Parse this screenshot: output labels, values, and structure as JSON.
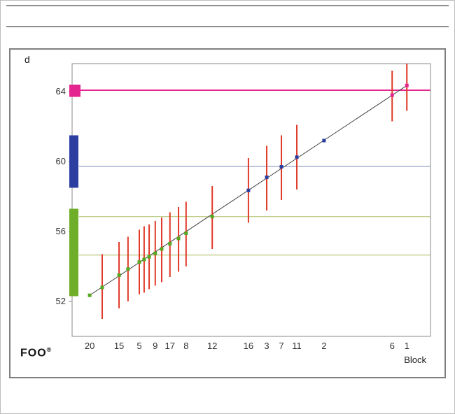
{
  "branding": {
    "logo": "FOO",
    "trademark": "®"
  },
  "chart_data": {
    "type": "scatter",
    "title": "",
    "ylabel": "d",
    "xlabel": "Block",
    "ylim": [
      50.0,
      65.6
    ],
    "yticks": [
      52,
      56,
      60,
      64
    ],
    "grid": false,
    "legend": "none",
    "colors": {
      "axis": "#8a8a8a",
      "text": "#333333",
      "error": "#e03a28",
      "trend": "#404040",
      "green": "#55a820",
      "blue": "#2c3e9f",
      "pink": "#e5258f",
      "green_line": "#a9bd62",
      "blue_line": "#8089c0",
      "pink_line": "#e5258f"
    },
    "reference_lines": [
      {
        "value": 64.08,
        "color": "#e5258f",
        "width": 2
      },
      {
        "value": 59.72,
        "color": "#8089c0",
        "width": 1
      },
      {
        "value": 56.85,
        "color": "#a9bd62",
        "width": 1
      },
      {
        "value": 54.65,
        "color": "#a9bd62",
        "width": 1
      }
    ],
    "axis_bars": [
      {
        "from": 63.7,
        "to": 64.4,
        "color": "#e5258f",
        "w": 16
      },
      {
        "from": 58.5,
        "to": 61.5,
        "color": "#2c3e9f",
        "w": 13
      },
      {
        "from": 52.3,
        "to": 57.3,
        "color": "#6fae28",
        "w": 13
      }
    ],
    "points": [
      {
        "x": 4.9,
        "value": 52.35,
        "lo": null,
        "hi": null,
        "group": "green",
        "label": "20"
      },
      {
        "x": 8.4,
        "value": 52.8,
        "lo": 51.0,
        "hi": 54.7,
        "group": "green",
        "label": null
      },
      {
        "x": 13.1,
        "value": 53.5,
        "lo": 51.6,
        "hi": 55.4,
        "group": "green",
        "label": "15"
      },
      {
        "x": 15.6,
        "value": 53.85,
        "lo": 52.0,
        "hi": 55.7,
        "group": "green",
        "label": null
      },
      {
        "x": 18.75,
        "value": 54.25,
        "lo": 52.4,
        "hi": 56.1,
        "group": "green",
        "label": "5"
      },
      {
        "x": 20.1,
        "value": 54.4,
        "lo": 52.5,
        "hi": 56.3,
        "group": "green",
        "label": null
      },
      {
        "x": 21.5,
        "value": 54.55,
        "lo": 52.7,
        "hi": 56.4,
        "group": "green",
        "label": null
      },
      {
        "x": 23.2,
        "value": 54.75,
        "lo": 52.9,
        "hi": 56.6,
        "group": "green",
        "label": "9"
      },
      {
        "x": 25.0,
        "value": 55.0,
        "lo": 53.1,
        "hi": 56.8,
        "group": "green",
        "label": null
      },
      {
        "x": 27.3,
        "value": 55.3,
        "lo": 53.4,
        "hi": 57.1,
        "group": "green",
        "label": "17"
      },
      {
        "x": 29.7,
        "value": 55.6,
        "lo": 53.7,
        "hi": 57.4,
        "group": "green",
        "label": null
      },
      {
        "x": 31.8,
        "value": 55.9,
        "lo": 54.0,
        "hi": 57.7,
        "group": "green",
        "label": "8"
      },
      {
        "x": 39.1,
        "value": 56.85,
        "lo": 55.0,
        "hi": 58.6,
        "group": "green",
        "label": "12"
      },
      {
        "x": 49.2,
        "value": 58.35,
        "lo": 56.5,
        "hi": 60.2,
        "group": "blue",
        "label": "16"
      },
      {
        "x": 54.3,
        "value": 59.1,
        "lo": 57.2,
        "hi": 60.9,
        "group": "blue",
        "label": "3"
      },
      {
        "x": 58.4,
        "value": 59.7,
        "lo": 57.8,
        "hi": 61.5,
        "group": "blue",
        "label": "7"
      },
      {
        "x": 62.7,
        "value": 60.25,
        "lo": 58.4,
        "hi": 62.1,
        "group": "blue",
        "label": "11"
      },
      {
        "x": 70.3,
        "value": 61.2,
        "lo": null,
        "hi": null,
        "group": "blue",
        "label": "2"
      },
      {
        "x": 89.3,
        "value": 63.8,
        "lo": 62.3,
        "hi": 65.2,
        "group": "pink",
        "label": "6"
      },
      {
        "x": 93.4,
        "value": 64.35,
        "lo": 62.9,
        "hi": 65.6,
        "group": "pink",
        "label": "1"
      }
    ]
  }
}
